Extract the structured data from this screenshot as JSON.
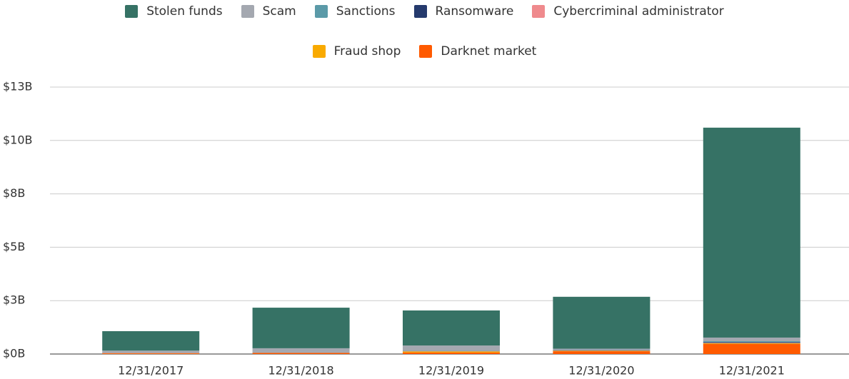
{
  "chart_data": {
    "type": "stacked_bar",
    "categories": [
      "12/31/2017",
      "12/31/2018",
      "12/31/2019",
      "12/31/2020",
      "12/31/2021"
    ],
    "series": [
      {
        "name": "Stolen funds",
        "color": "#367265",
        "values": [
          0.91,
          1.9,
          1.64,
          2.43,
          9.83
        ]
      },
      {
        "name": "Scam",
        "color": "#a4a8b0",
        "values": [
          0.1,
          0.2,
          0.25,
          0.06,
          0.17
        ]
      },
      {
        "name": "Sanctions",
        "color": "#5b9aa8",
        "values": [
          0,
          0.005,
          0.01,
          0.01,
          0.05
        ]
      },
      {
        "name": "Ransomware",
        "color": "#253a6d",
        "values": [
          0.01,
          0.005,
          0.01,
          0.02,
          0.03
        ]
      },
      {
        "name": "Cybercriminal administrator",
        "color": "#ef8a8d",
        "values": [
          0.01,
          0.005,
          0.01,
          0.01,
          0.02
        ]
      },
      {
        "name": "Fraud shop",
        "color": "#f9aa00",
        "values": [
          0.01,
          0.005,
          0.05,
          0.02,
          0.03
        ]
      },
      {
        "name": "Darknet market",
        "color": "#ff5a00",
        "values": [
          0.03,
          0.05,
          0.07,
          0.13,
          0.47
        ]
      }
    ],
    "ylim": [
      0,
      12.5
    ],
    "yticks": [
      {
        "value": 0,
        "label": "$0B"
      },
      {
        "value": 2.5,
        "label": "$3B"
      },
      {
        "value": 5,
        "label": "$5B"
      },
      {
        "value": 7.5,
        "label": "$8B"
      },
      {
        "value": 10,
        "label": "$10B"
      },
      {
        "value": 12.5,
        "label": "$13B"
      }
    ],
    "grid": true
  }
}
